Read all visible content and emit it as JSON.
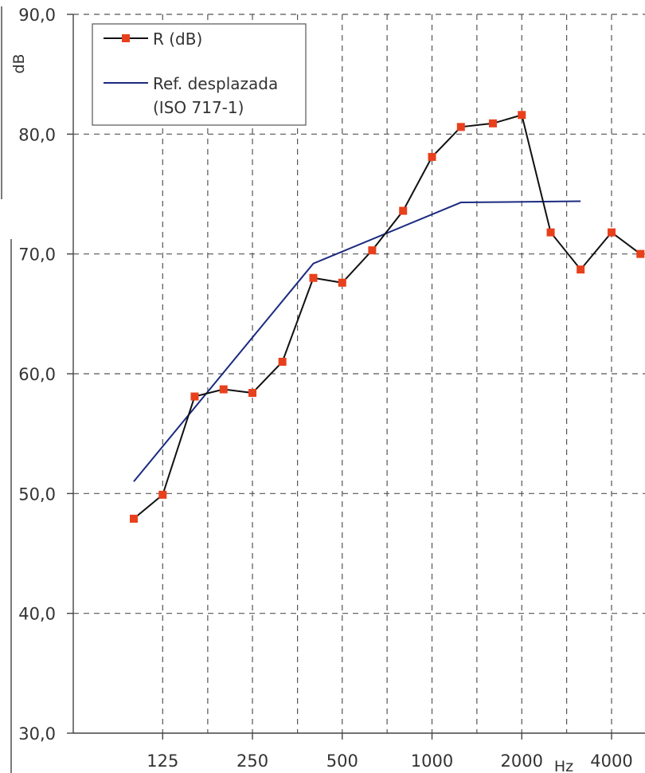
{
  "chart_data": {
    "type": "line",
    "ylabel": "dB",
    "xunit": "Hz",
    "ylim": [
      30,
      90
    ],
    "y_ticks": [
      "90,0",
      "80,0",
      "70,0",
      "60,0",
      "50,0",
      "40,0",
      "30,0"
    ],
    "y_tick_values": [
      90,
      80,
      70,
      60,
      50,
      40,
      30
    ],
    "x_tick_labels": [
      "125",
      "250",
      "500",
      "1000",
      "2000",
      "4000"
    ],
    "x_tick_values": [
      125,
      250,
      500,
      1000,
      2000,
      4000
    ],
    "grid": true,
    "legend_position": "top-left",
    "series": [
      {
        "name": "R (dB)",
        "color": "#e8401c",
        "line_color": "#111111",
        "marker": "square",
        "x": [
          100,
          125,
          160,
          200,
          250,
          315,
          400,
          500,
          630,
          800,
          1000,
          1250,
          1600,
          2000,
          2500,
          3150,
          4000,
          5000
        ],
        "values": [
          47.9,
          49.9,
          58.1,
          58.7,
          58.4,
          61.0,
          68.0,
          67.6,
          70.3,
          73.6,
          78.1,
          80.6,
          80.9,
          81.6,
          71.8,
          68.7,
          71.8,
          70.0
        ]
      },
      {
        "name": "Ref. desplazada\n(ISO 717-1)",
        "color": "#1b2a80",
        "x": [
          100,
          400,
          1250,
          3150
        ],
        "values": [
          51.0,
          69.2,
          74.3,
          74.4
        ]
      }
    ]
  }
}
